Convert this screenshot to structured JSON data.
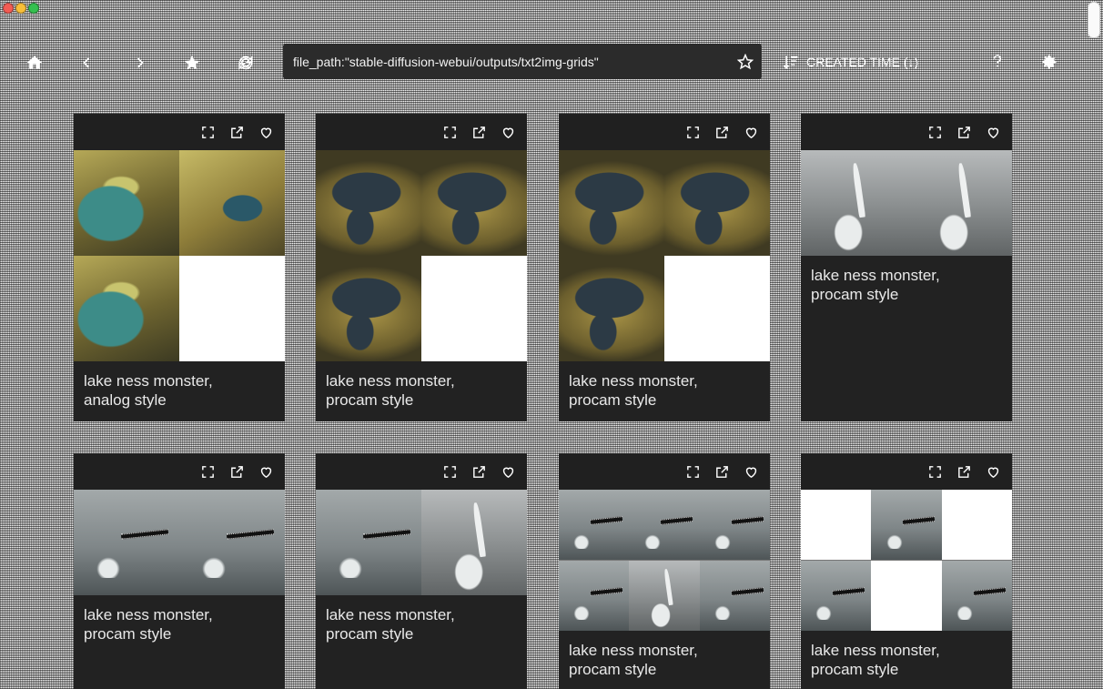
{
  "toolbar": {
    "search_value": "file_path:\"stable-diffusion-webui/outputs/txt2img-grids\"",
    "sort_label": "CREATED TIME (↓)"
  },
  "icons": {
    "home": "home-icon",
    "back": "chevron-left-icon",
    "forward": "chevron-right-icon",
    "starred": "star-outline-icon",
    "refresh": "refresh-icon",
    "bookmark": "star-icon",
    "sort": "sort-descending-icon",
    "help": "question-icon",
    "settings": "gear-icon",
    "card_expand": "expand-icon",
    "card_open": "open-external-icon",
    "card_favorite": "heart-icon"
  },
  "cards": [
    {
      "caption": "lake ness monster,\nanalog style"
    },
    {
      "caption": "lake ness monster,\nprocam style"
    },
    {
      "caption": "lake ness monster,\nprocam style"
    },
    {
      "caption": "lake ness monster,\nprocam style"
    },
    {
      "caption": "lake ness monster,\nprocam style"
    },
    {
      "caption": "lake ness monster,\nprocam style"
    },
    {
      "caption": "lake ness monster,\nprocam style"
    },
    {
      "caption": "lake ness monster,\nprocam style"
    }
  ],
  "colors": {
    "card_bg": "#222222",
    "header_bg": "#202020",
    "search_bg": "#2b2b2b",
    "text": "#e9e9e9",
    "traffic_red": "#f25c54",
    "traffic_yellow": "#f7be38",
    "traffic_green": "#35c04f"
  }
}
